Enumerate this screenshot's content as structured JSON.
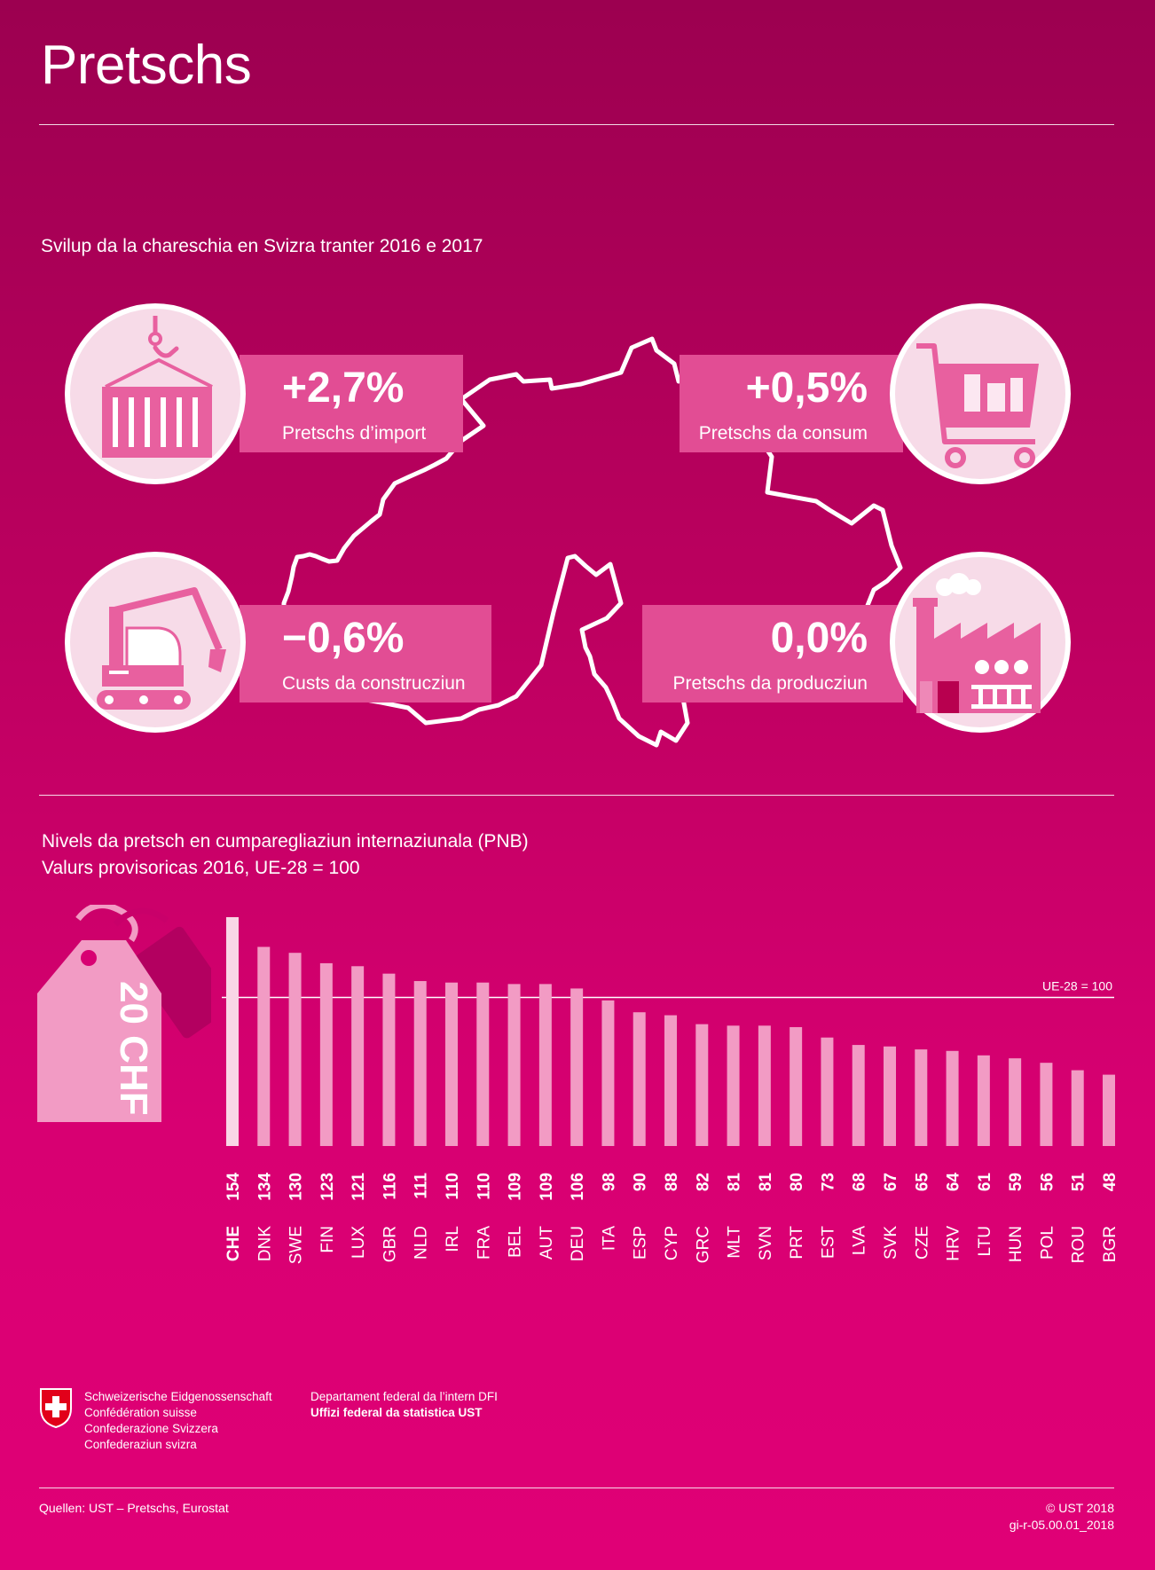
{
  "page": {
    "title": "Pretschs",
    "section1_title": "Svilup da la chareschia en Svizra tranter 2016 e 2017"
  },
  "stats": {
    "import": {
      "value": "+2,7%",
      "label": "Pretschs d’import",
      "icon": "container-icon"
    },
    "consum": {
      "value": "+0,5%",
      "label": "Pretschs da consum",
      "icon": "shopping-cart-icon"
    },
    "construcziun": {
      "value": "−0,6%",
      "label": "Custs da construcziun",
      "icon": "excavator-icon"
    },
    "producziun": {
      "value": "0,0%",
      "label": "Pretschs da producziun",
      "icon": "factory-icon"
    }
  },
  "price_tag": {
    "text": "20 CHF",
    "icon": "price-tag-icon"
  },
  "chart_data": {
    "type": "bar",
    "title": "Nivels da pretsch en cumparegliaziun internaziunala (PNB)",
    "subtitle": "Valurs provisoricas 2016, UE-28 = 100",
    "reference_line": {
      "value": 100,
      "label": "UE-28 = 100"
    },
    "categories": [
      "CHE",
      "DNK",
      "SWE",
      "FIN",
      "LUX",
      "GBR",
      "NLD",
      "IRL",
      "FRA",
      "BEL",
      "AUT",
      "DEU",
      "ITA",
      "ESP",
      "CYP",
      "GRC",
      "MLT",
      "SVN",
      "PRT",
      "EST",
      "LVA",
      "SVK",
      "CZE",
      "HRV",
      "LTU",
      "HUN",
      "POL",
      "ROU",
      "BGR"
    ],
    "values": [
      154,
      134,
      130,
      123,
      121,
      116,
      111,
      110,
      110,
      109,
      109,
      106,
      98,
      90,
      88,
      82,
      81,
      81,
      80,
      73,
      68,
      67,
      65,
      64,
      61,
      59,
      56,
      51,
      48
    ],
    "highlight": "CHE",
    "ylim": [
      0,
      154
    ],
    "colors": {
      "highlight": "#f9d6e6",
      "bar": "#f29bc4"
    }
  },
  "footer": {
    "confederation": [
      "Schweizerische Eidgenossenschaft",
      "Confédération suisse",
      "Confederazione Svizzera",
      "Confederaziun svizra"
    ],
    "department": "Departament federal da l’intern DFI",
    "office": "Uffizi federal da statistica UST",
    "sources": "Quellen: UST – Pretschs, Eurostat",
    "copyright": "© UST 2018",
    "code": "gi-r-05.00.01_2018"
  },
  "colors": {
    "background_top": "#9c0050",
    "background_bottom": "#e00076",
    "box": "#e24d94",
    "circle": "#f7dbe8",
    "icon": "#e8609f"
  }
}
